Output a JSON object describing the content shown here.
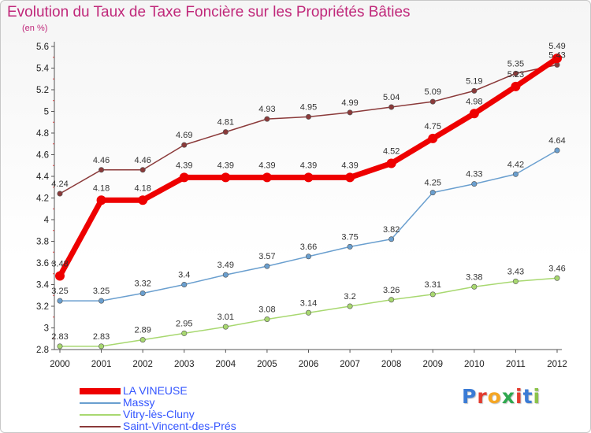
{
  "title": "Evolution du Taux de Taxe Foncière sur les Propriétés Bâties",
  "subtitle": "(en %)",
  "logo": {
    "text": "Proxiti",
    "colors": [
      "#3a7bd5",
      "#e33b2e",
      "#f5a623",
      "#2fa84f",
      "#e33b2e",
      "#3a7bd5",
      "#8bc34a"
    ]
  },
  "chart_data": {
    "type": "line",
    "title": "Evolution du Taux de Taxe Foncière sur les Propriétés Bâties",
    "subtitle": "(en %)",
    "xlabel": "",
    "ylabel": "",
    "x": [
      "2000",
      "2001",
      "2002",
      "2003",
      "2004",
      "2005",
      "2006",
      "2007",
      "2008",
      "2009",
      "2010",
      "2011",
      "2012"
    ],
    "ylim": [
      2.8,
      5.6
    ],
    "yticks": [
      "2.8",
      "3",
      "3.2",
      "3.4",
      "3.6",
      "3.8",
      "4",
      "4.2",
      "4.4",
      "4.6",
      "4.8",
      "5",
      "5.2",
      "5.4",
      "5.6"
    ],
    "grid": false,
    "legend": "bottom-left",
    "series": [
      {
        "name": "LA VINEUSE",
        "color": "#ee0000",
        "values": [
          3.48,
          4.18,
          4.18,
          4.39,
          4.39,
          4.39,
          4.39,
          4.39,
          4.52,
          4.75,
          4.98,
          5.23,
          5.49
        ],
        "labels": [
          "3.48",
          "4.18",
          "4.18",
          "4.39",
          "4.39",
          "4.39",
          "4.39",
          "4.39",
          "4.52",
          "4.75",
          "4.98",
          "5.23",
          "5.49"
        ]
      },
      {
        "name": "Massy",
        "color": "#6a9fcf",
        "values": [
          3.25,
          3.25,
          3.32,
          3.4,
          3.49,
          3.57,
          3.66,
          3.75,
          3.82,
          4.25,
          4.33,
          4.42,
          4.64
        ],
        "labels": [
          "3.25",
          "3.25",
          "3.32",
          "3.4",
          "3.49",
          "3.57",
          "3.66",
          "3.75",
          "3.82",
          "4.25",
          "4.33",
          "4.42",
          "4.64"
        ]
      },
      {
        "name": "Vitry-lès-Cluny",
        "color": "#a8d870",
        "values": [
          2.83,
          2.83,
          2.89,
          2.95,
          3.01,
          3.08,
          3.14,
          3.2,
          3.26,
          3.31,
          3.38,
          3.43,
          3.46
        ],
        "labels": [
          "2.83",
          "2.83",
          "2.89",
          "2.95",
          "3.01",
          "3.08",
          "3.14",
          "3.2",
          "3.26",
          "3.31",
          "3.38",
          "3.43",
          "3.46"
        ]
      },
      {
        "name": "Saint-Vincent-des-Prés",
        "color": "#8b3a3a",
        "values": [
          4.24,
          4.46,
          4.46,
          4.69,
          4.81,
          4.93,
          4.95,
          4.99,
          5.04,
          5.09,
          5.19,
          5.35,
          5.43
        ],
        "labels": [
          "4.24",
          "4.46",
          "4.46",
          "4.69",
          "4.81",
          "4.93",
          "4.95",
          "4.99",
          "5.04",
          "5.09",
          "5.19",
          "5.35",
          "5.43"
        ]
      }
    ]
  }
}
